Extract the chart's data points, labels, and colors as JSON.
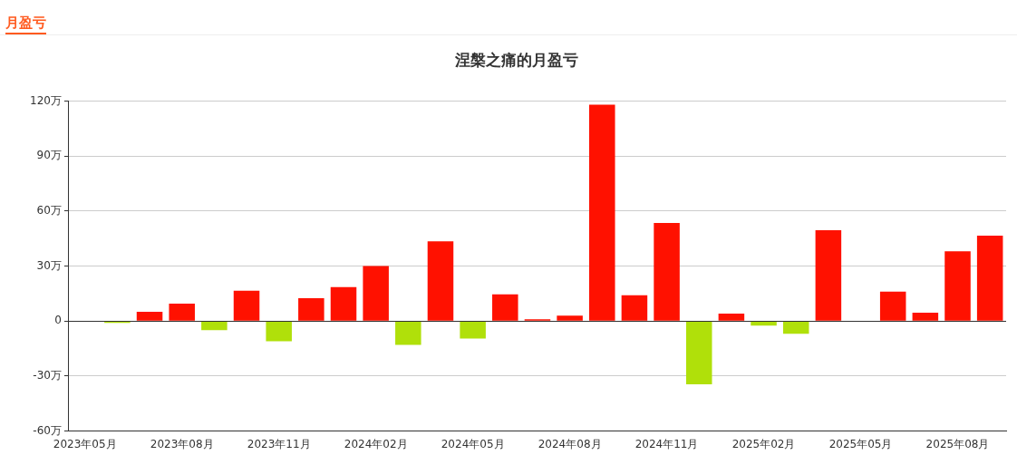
{
  "chart_data": {
    "type": "bar",
    "title": "涅槃之痛的月盈亏",
    "annotations": [
      "月盈亏"
    ],
    "categories": [
      "2023年05月",
      null,
      null,
      "2023年08月",
      null,
      null,
      "2023年11月",
      null,
      null,
      "2024年02月",
      null,
      null,
      "2024年05月",
      null,
      null,
      "2024年08月",
      null,
      null,
      "2024年11月",
      null,
      null,
      "2025年02月",
      null,
      null,
      "2025年05月",
      null,
      null,
      "2025年08月",
      null
    ],
    "values": [
      0,
      -1,
      5,
      9.5,
      -5,
      16.5,
      -11,
      12.5,
      18.5,
      30,
      -13,
      43.5,
      -9.5,
      14.5,
      1,
      3,
      118,
      14,
      53.5,
      -34.5,
      4,
      -2.5,
      -7,
      49.5,
      0,
      16,
      4.5,
      38,
      46.5
    ],
    "colors": [
      "#b0e00a",
      "#b0e00a",
      "#ff1100",
      "#ff1100",
      "#b0e00a",
      "#ff1100",
      "#b0e00a",
      "#ff1100",
      "#ff1100",
      "#ff1100",
      "#b0e00a",
      "#ff1100",
      "#b0e00a",
      "#ff1100",
      "#ff1100",
      "#ff1100",
      "#ff1100",
      "#ff1100",
      "#ff1100",
      "#b0e00a",
      "#ff1100",
      "#b0e00a",
      "#b0e00a",
      "#ff1100",
      "#b0e00a",
      "#ff1100",
      "#ff1100",
      "#ff1100",
      "#ff1100"
    ],
    "ylim": [
      -60,
      120
    ],
    "yticks": [
      {
        "value": -60,
        "label": "-60万"
      },
      {
        "value": -30,
        "label": "-30万"
      },
      {
        "value": 0,
        "label": "0"
      },
      {
        "value": 30,
        "label": "30万"
      },
      {
        "value": 60,
        "label": "60万"
      },
      {
        "value": 90,
        "label": "90万"
      },
      {
        "value": 120,
        "label": "120万"
      }
    ],
    "grid": "y",
    "legend": false
  }
}
